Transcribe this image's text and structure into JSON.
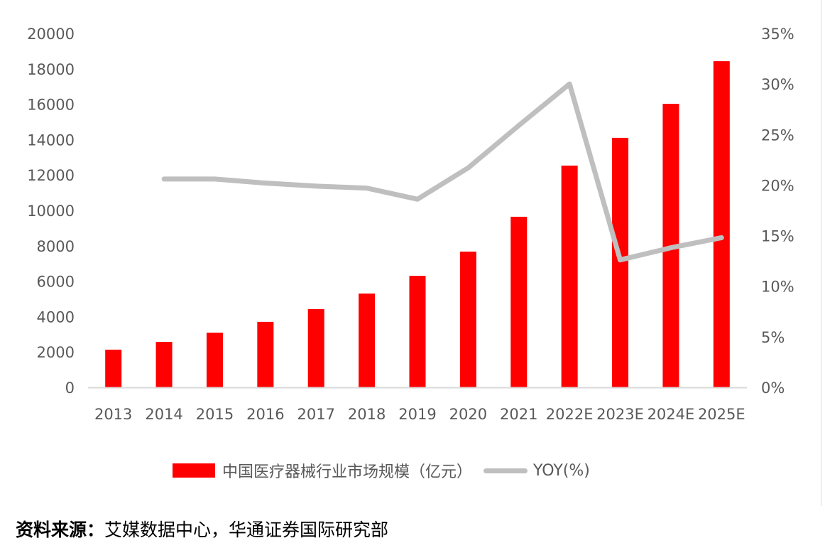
{
  "chart_data": {
    "type": "bar+line",
    "title": "",
    "categories": [
      "2013",
      "2014",
      "2015",
      "2016",
      "2017",
      "2018",
      "2019",
      "2020",
      "2021",
      "2022E",
      "2023E",
      "2024E",
      "2025E"
    ],
    "series": [
      {
        "name": "中国医疗器械行业市场规模（亿元）",
        "type": "bar",
        "axis": "left",
        "color": "#ff0000",
        "values": [
          2130,
          2570,
          3090,
          3700,
          4420,
          5300,
          6300,
          7670,
          9640,
          12530,
          14100,
          16020,
          18430
        ]
      },
      {
        "name": "YOY(%)",
        "type": "line",
        "axis": "right",
        "color": "#bfbfbf",
        "values": [
          null,
          20.6,
          20.6,
          20.2,
          19.9,
          19.7,
          18.6,
          21.7,
          25.9,
          30.0,
          12.6,
          13.8,
          14.8
        ]
      }
    ],
    "left_axis": {
      "min": 0,
      "max": 20000,
      "step": 2000,
      "ticks": [
        "0",
        "2000",
        "4000",
        "6000",
        "8000",
        "10000",
        "12000",
        "14000",
        "16000",
        "18000",
        "20000"
      ]
    },
    "right_axis": {
      "min": 0,
      "max": 35,
      "step": 5,
      "ticks": [
        "0%",
        "5%",
        "10%",
        "15%",
        "20%",
        "25%",
        "30%",
        "35%"
      ]
    },
    "xlabel": "",
    "ylabel": "",
    "grid": false,
    "legend_position": "bottom"
  },
  "legend": {
    "bar_label": "中国医疗器械行业市场规模（亿元）",
    "line_label": "YOY(%)"
  },
  "source": {
    "prefix": "资料来源：",
    "text": "艾媒数据中心，华通证券国际研究部"
  }
}
